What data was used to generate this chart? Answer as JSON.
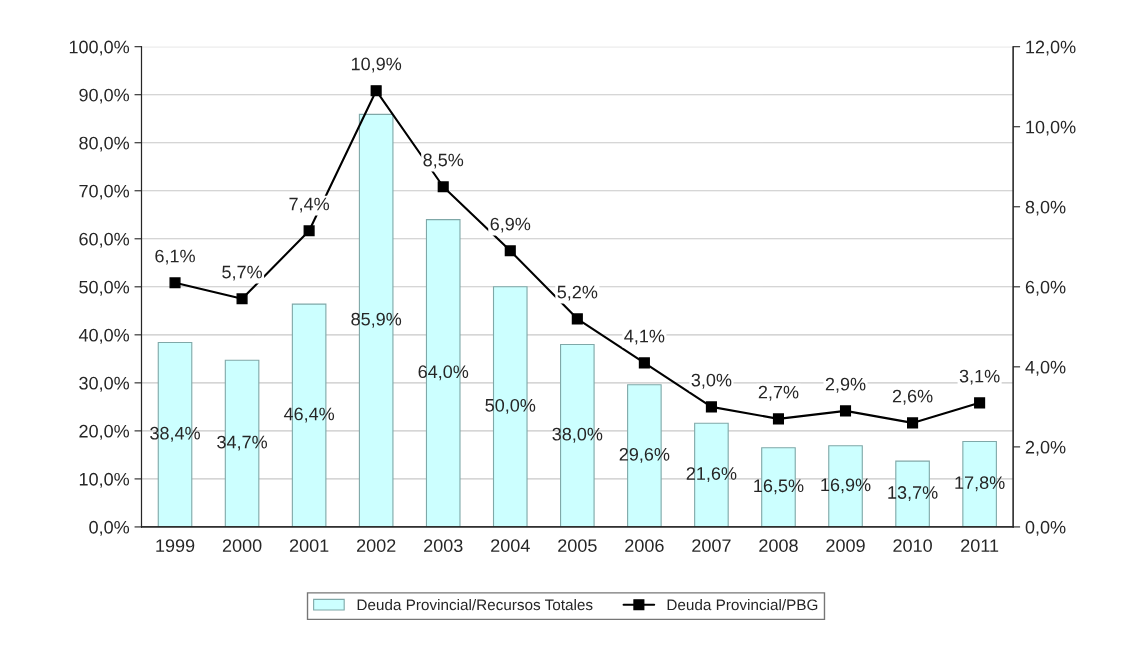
{
  "chart_data": {
    "type": "bar",
    "categories": [
      "1999",
      "2000",
      "2001",
      "2002",
      "2003",
      "2004",
      "2005",
      "2006",
      "2007",
      "2008",
      "2009",
      "2010",
      "2011"
    ],
    "series": [
      {
        "name": "Deuda Provincial/Recursos Totales",
        "color": "#ccffff",
        "values": [
          38.4,
          34.7,
          46.4,
          85.9,
          64.0,
          50.0,
          38.0,
          29.6,
          21.6,
          16.5,
          16.9,
          13.7,
          17.8
        ],
        "value_labels": [
          "38,4%",
          "34,7%",
          "46,4%",
          "85,9%",
          "64,0%",
          "50,0%",
          "38,0%",
          "29,6%",
          "21,6%",
          "16,5%",
          "16,9%",
          "13,7%",
          "17,8%"
        ]
      },
      {
        "name": "Deuda Provincial/PBG",
        "type": "line",
        "axis": "y2",
        "color": "#000000",
        "marker": "square",
        "values": [
          6.1,
          5.7,
          7.4,
          10.9,
          8.5,
          6.9,
          5.2,
          4.1,
          3.0,
          2.7,
          2.9,
          2.6,
          3.1
        ],
        "value_labels": [
          "6,1%",
          "5,7%",
          "7,4%",
          "10,9%",
          "8,5%",
          "6,9%",
          "5,2%",
          "4,1%",
          "3,0%",
          "2,7%",
          "2,9%",
          "2,6%",
          "3,1%"
        ]
      }
    ],
    "ylim": [
      0,
      100
    ],
    "yticks": [
      {
        "value": 0,
        "label": "0,0%"
      },
      {
        "value": 10,
        "label": "10,0%"
      },
      {
        "value": 20,
        "label": "20,0%"
      },
      {
        "value": 30,
        "label": "30,0%"
      },
      {
        "value": 40,
        "label": "40,0%"
      },
      {
        "value": 50,
        "label": "50,0%"
      },
      {
        "value": 60,
        "label": "60,0%"
      },
      {
        "value": 70,
        "label": "70,0%"
      },
      {
        "value": 80,
        "label": "80,0%"
      },
      {
        "value": 90,
        "label": "90,0%"
      },
      {
        "value": 100,
        "label": "100,0%"
      }
    ],
    "y2lim": [
      0,
      12
    ],
    "y2ticks": [
      {
        "value": 0,
        "label": "0,0%"
      },
      {
        "value": 2,
        "label": "2,0%"
      },
      {
        "value": 4,
        "label": "4,0%"
      },
      {
        "value": 6,
        "label": "6,0%"
      },
      {
        "value": 8,
        "label": "8,0%"
      },
      {
        "value": 10,
        "label": "10,0%"
      },
      {
        "value": 12,
        "label": "12,0%"
      }
    ],
    "grid": "y",
    "legend": "bottom"
  }
}
